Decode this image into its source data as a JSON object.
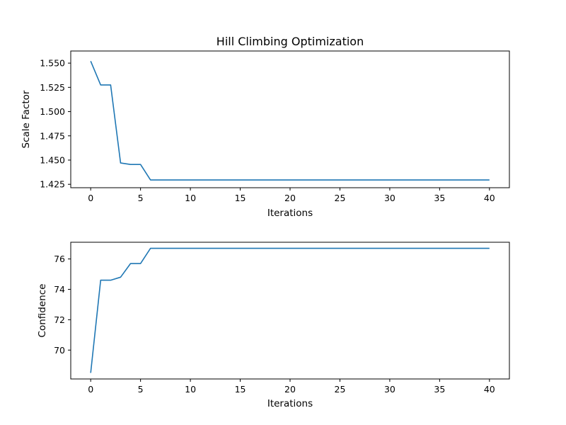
{
  "chart_data": [
    {
      "type": "line",
      "title": "Hill Climbing Optimization",
      "xlabel": "Iterations",
      "ylabel": "Scale Factor",
      "xlim": [
        -2,
        42
      ],
      "ylim": [
        1.4215,
        1.5625
      ],
      "xticks": [
        0,
        5,
        10,
        15,
        20,
        25,
        30,
        35,
        40
      ],
      "yticks": [
        1.425,
        1.45,
        1.475,
        1.5,
        1.525,
        1.55
      ],
      "ytick_labels": [
        "1.425",
        "1.450",
        "1.475",
        "1.500",
        "1.525",
        "1.550"
      ],
      "grid": false,
      "line_color": "#1f77b4",
      "x": [
        0,
        1,
        2,
        3,
        4,
        5,
        6,
        7,
        8,
        9,
        10,
        11,
        12,
        13,
        14,
        15,
        16,
        17,
        18,
        19,
        20,
        21,
        22,
        23,
        24,
        25,
        26,
        27,
        28,
        29,
        30,
        31,
        32,
        33,
        34,
        35,
        36,
        37,
        38,
        39,
        40
      ],
      "y": [
        1.552,
        1.5275,
        1.5275,
        1.447,
        1.4455,
        1.4455,
        1.4295,
        1.4295,
        1.4295,
        1.4295,
        1.4295,
        1.4295,
        1.4295,
        1.4295,
        1.4295,
        1.4295,
        1.4295,
        1.4295,
        1.4295,
        1.4295,
        1.4295,
        1.4295,
        1.4295,
        1.4295,
        1.4295,
        1.4295,
        1.4295,
        1.4295,
        1.4295,
        1.4295,
        1.4295,
        1.4295,
        1.4295,
        1.4295,
        1.4295,
        1.4295,
        1.4295,
        1.4295,
        1.4295,
        1.4295,
        1.4295
      ]
    },
    {
      "type": "line",
      "title": "",
      "xlabel": "Iterations",
      "ylabel": "Confidence",
      "xlim": [
        -2,
        42
      ],
      "ylim": [
        68.1,
        77.1
      ],
      "xticks": [
        0,
        5,
        10,
        15,
        20,
        25,
        30,
        35,
        40
      ],
      "yticks": [
        70,
        72,
        74,
        76
      ],
      "ytick_labels": [
        "70",
        "72",
        "74",
        "76"
      ],
      "grid": false,
      "line_color": "#1f77b4",
      "x": [
        0,
        1,
        2,
        3,
        4,
        5,
        6,
        7,
        8,
        9,
        10,
        11,
        12,
        13,
        14,
        15,
        16,
        17,
        18,
        19,
        20,
        21,
        22,
        23,
        24,
        25,
        26,
        27,
        28,
        29,
        30,
        31,
        32,
        33,
        34,
        35,
        36,
        37,
        38,
        39,
        40
      ],
      "y": [
        68.5,
        74.6,
        74.6,
        74.8,
        75.7,
        75.7,
        76.7,
        76.7,
        76.7,
        76.7,
        76.7,
        76.7,
        76.7,
        76.7,
        76.7,
        76.7,
        76.7,
        76.7,
        76.7,
        76.7,
        76.7,
        76.7,
        76.7,
        76.7,
        76.7,
        76.7,
        76.7,
        76.7,
        76.7,
        76.7,
        76.7,
        76.7,
        76.7,
        76.7,
        76.7,
        76.7,
        76.7,
        76.7,
        76.7,
        76.7,
        76.7
      ]
    }
  ]
}
